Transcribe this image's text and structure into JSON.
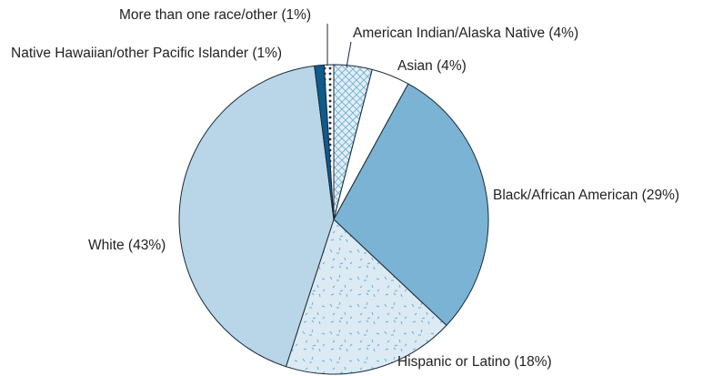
{
  "chart_data": {
    "type": "pie",
    "categories": [
      "American Indian/Alaska Native (4%)",
      "Asian (4%)",
      "Black/African American (29%)",
      "Hispanic or Latino (18%)",
      "White (43%)",
      "Native Hawaiian/other Pacific Islander (1%)",
      "More than one race/other (1%)"
    ],
    "values": [
      4,
      4,
      29,
      18,
      43,
      1,
      1
    ],
    "colors": [
      "url(#hatch)",
      "#ffffff",
      "#7ab3d3",
      "url(#speckle)",
      "#b9d6e8",
      "#0e5b8c",
      "url(#dots)"
    ]
  }
}
